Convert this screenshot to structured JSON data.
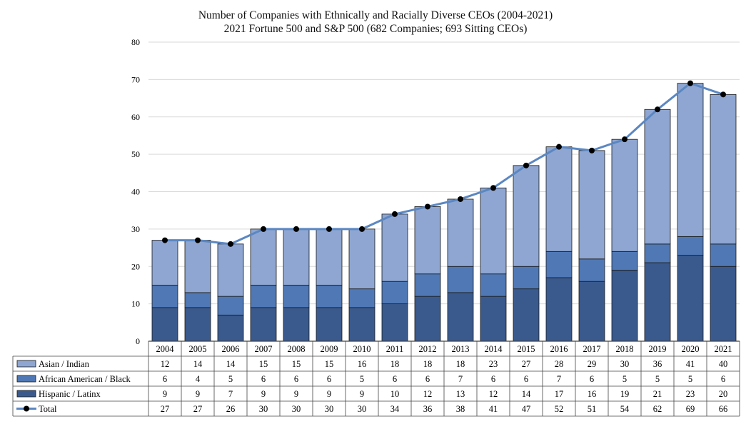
{
  "chart_data": {
    "type": "bar",
    "stacked": true,
    "title": "Number of Companies with Ethnically and Racially Diverse CEOs (2004-2021)",
    "subtitle": "2021 Fortune 500 and S&P 500 (682 Companies; 693 Sitting CEOs)",
    "ylim": [
      0,
      80
    ],
    "yticks": [
      0,
      10,
      20,
      30,
      40,
      50,
      60,
      70,
      80
    ],
    "grid": true,
    "legend_placement": "data-table-left",
    "categories": [
      "2004",
      "2005",
      "2006",
      "2007",
      "2008",
      "2009",
      "2010",
      "2011",
      "2012",
      "2013",
      "2014",
      "2015",
      "2016",
      "2017",
      "2018",
      "2019",
      "2020",
      "2021"
    ],
    "series": [
      {
        "name": "Asian / Indian",
        "kind": "bar",
        "color": "#8ea6d1",
        "values": [
          12,
          14,
          14,
          15,
          15,
          15,
          16,
          18,
          18,
          18,
          23,
          27,
          28,
          29,
          30,
          36,
          41,
          40
        ]
      },
      {
        "name": "African American / Black",
        "kind": "bar",
        "color": "#4f78b5",
        "values": [
          6,
          4,
          5,
          6,
          6,
          6,
          5,
          6,
          6,
          7,
          6,
          6,
          7,
          6,
          5,
          5,
          5,
          6
        ]
      },
      {
        "name": "Hispanic / Latinx",
        "kind": "bar",
        "color": "#3a5a8e",
        "values": [
          9,
          9,
          7,
          9,
          9,
          9,
          9,
          10,
          12,
          13,
          12,
          14,
          17,
          16,
          19,
          21,
          23,
          20
        ]
      },
      {
        "name": "Total",
        "kind": "line",
        "color": "#5b87c2",
        "marker_color": "#000000",
        "values": [
          27,
          27,
          26,
          30,
          30,
          30,
          30,
          34,
          36,
          38,
          41,
          47,
          52,
          51,
          54,
          62,
          69,
          66
        ]
      }
    ]
  }
}
